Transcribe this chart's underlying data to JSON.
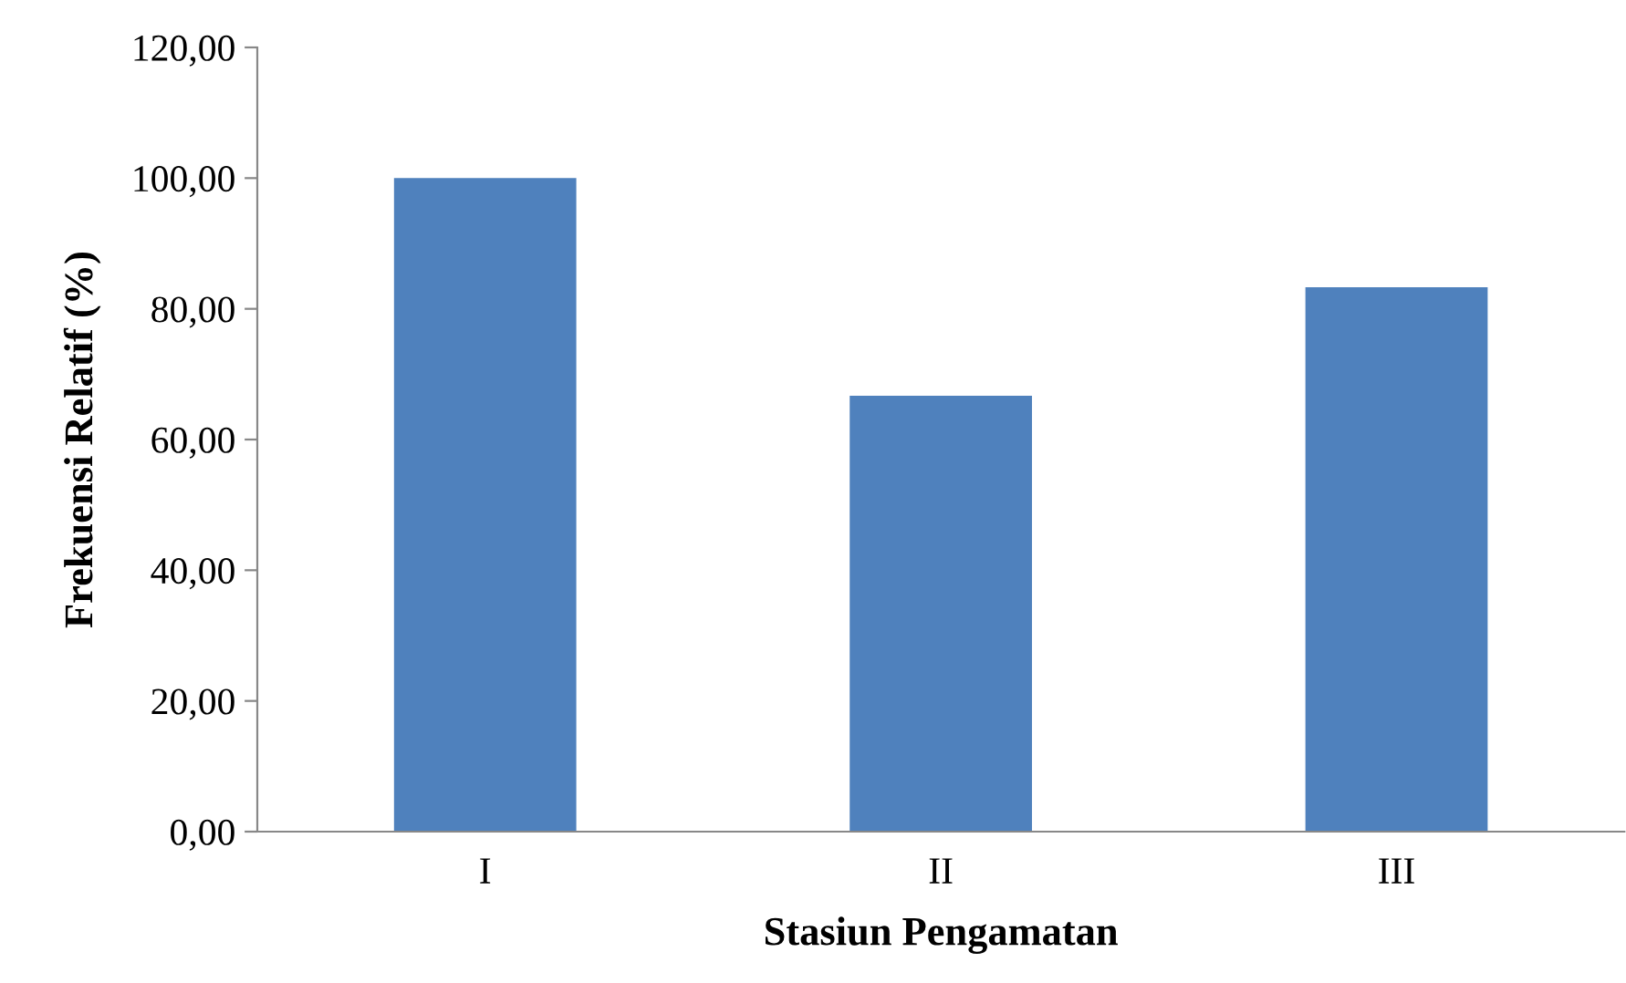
{
  "chart_data": {
    "type": "bar",
    "xlabel": "Stasiun Pengamatan",
    "ylabel": "Frekuensi Relatif (%)",
    "categories": [
      "I",
      "II",
      "III"
    ],
    "values": [
      100,
      66.7,
      83.3
    ],
    "color": "#4f81bd",
    "ylim": [
      0,
      120
    ],
    "yticks": [
      {
        "value": 0,
        "label": "0,00"
      },
      {
        "value": 20,
        "label": "20,00"
      },
      {
        "value": 40,
        "label": "40,00"
      },
      {
        "value": 60,
        "label": "60,00"
      },
      {
        "value": 80,
        "label": "80,00"
      },
      {
        "value": 100,
        "label": "100,00"
      },
      {
        "value": 120,
        "label": "120,00"
      }
    ],
    "grid": false,
    "legend": false
  }
}
